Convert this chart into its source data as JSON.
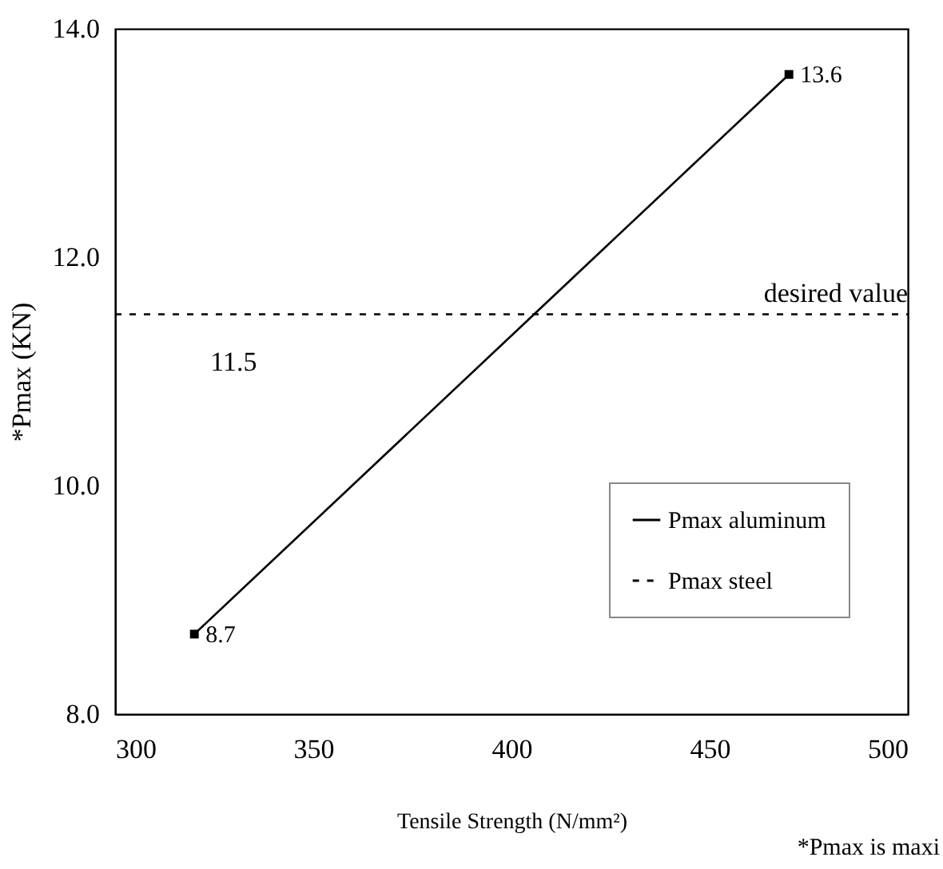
{
  "chart_data": {
    "type": "line",
    "xlabel": "Tensile Strength (N/mm²)",
    "ylabel": "*Pmax (KN)",
    "xlim": [
      300,
      500
    ],
    "xticks": [
      300,
      350,
      400,
      450,
      500
    ],
    "ylim": [
      8,
      14
    ],
    "yticks": [
      {
        "value": 8,
        "label": "8.0"
      },
      {
        "value": 10,
        "label": "10.0"
      },
      {
        "value": 12,
        "label": "12.0"
      },
      {
        "value": 14,
        "label": "14.0"
      }
    ],
    "grid": false,
    "legend": "bottom right",
    "series": [
      {
        "name": "Pmax aluminum",
        "color": "#000000",
        "x": [
          320,
          470
        ],
        "values": [
          8.7,
          13.6
        ],
        "marker": "square",
        "line_style": "solid",
        "data_labels": true
      },
      {
        "name": "Pmax  steel",
        "color": "#000000",
        "x": [
          300,
          500
        ],
        "values": [
          11.5,
          11.5
        ],
        "marker": "none",
        "line_style": "dashed"
      }
    ],
    "annotations": [
      {
        "text": "11.5",
        "x": 320,
        "y": 11.5
      },
      {
        "text": "desired value",
        "x": 500,
        "y": 11.5
      },
      "*Pmax is maxi"
    ]
  }
}
